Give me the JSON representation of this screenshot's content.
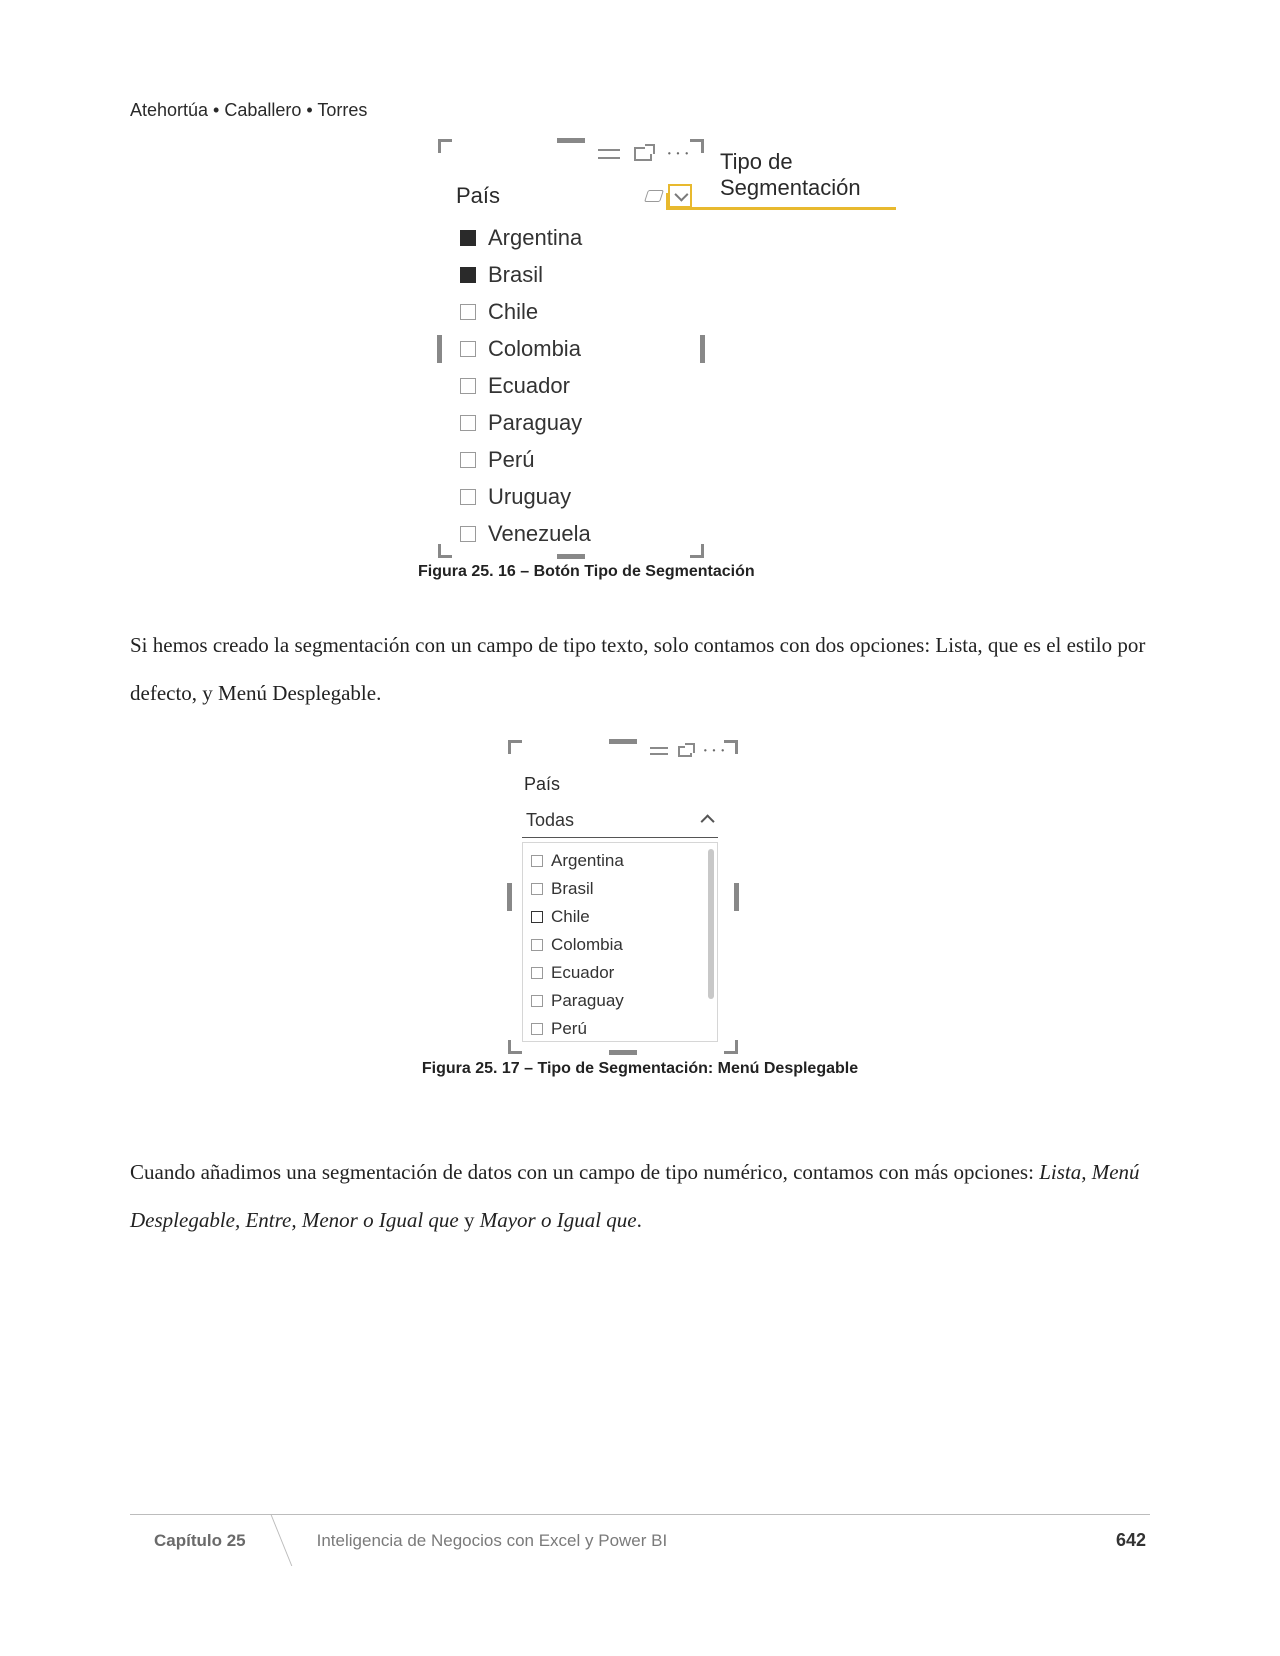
{
  "header": {
    "authors": "Atehortúa • Caballero • Torres"
  },
  "figure1": {
    "slicer_title": "País",
    "items": [
      {
        "label": "Argentina",
        "checked": true
      },
      {
        "label": "Brasil",
        "checked": true
      },
      {
        "label": "Chile",
        "checked": false
      },
      {
        "label": "Colombia",
        "checked": false
      },
      {
        "label": "Ecuador",
        "checked": false
      },
      {
        "label": "Paraguay",
        "checked": false
      },
      {
        "label": "Perú",
        "checked": false
      },
      {
        "label": "Uruguay",
        "checked": false
      },
      {
        "label": "Venezuela",
        "checked": false
      }
    ],
    "callout_line1": "Tipo de",
    "callout_line2": "Segmentación",
    "caption": "Figura 25. 16 – Botón Tipo de Segmentación",
    "highlight_color": "#e8b92e",
    "frame_handle_color": "#888888"
  },
  "paragraph1": "Si hemos creado la segmentación con un campo de tipo texto, solo contamos con dos opciones: Lista, que es el estilo por defecto, y Menú Desplegable.",
  "figure2": {
    "slicer_title": "País",
    "dropdown_value": "Todas",
    "items": [
      {
        "label": "Argentina",
        "bold": false
      },
      {
        "label": "Brasil",
        "bold": false
      },
      {
        "label": "Chile",
        "bold": true
      },
      {
        "label": "Colombia",
        "bold": false
      },
      {
        "label": "Ecuador",
        "bold": false
      },
      {
        "label": "Paraguay",
        "bold": false
      },
      {
        "label": "Perú",
        "bold": false
      }
    ],
    "caption": "Figura 25. 17 – Tipo de Segmentación: Menú Desplegable"
  },
  "paragraph2_plain": "Cuando añadimos una segmentación de datos con un campo de tipo numérico, contamos con más opciones: ",
  "paragraph2_italic1": "Lista, Menú Desplegable, Entre, Menor o Igual que",
  "paragraph2_mid": " y ",
  "paragraph2_italic2": "Mayor o Igual que",
  "paragraph2_end": ".",
  "footer": {
    "chapter": "Capítulo 25",
    "title": "Inteligencia de Negocios con Excel y Power BI",
    "page": "642"
  }
}
